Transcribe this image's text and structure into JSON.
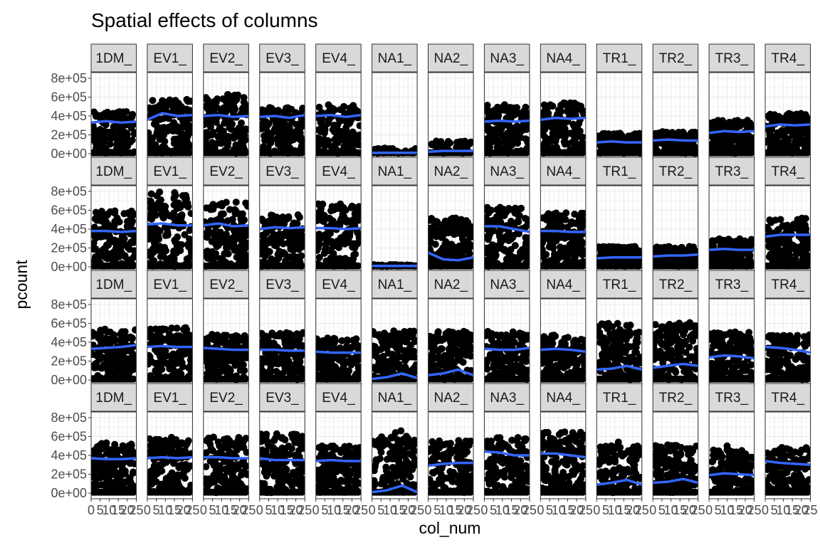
{
  "chart_data": {
    "type": "scatter",
    "title": "Spatial effects of columns",
    "xlabel": "col_num",
    "ylabel": "pcount",
    "facet_labels": [
      "1DM_",
      "EV1_",
      "EV2_",
      "EV3_",
      "EV4_",
      "NA1_",
      "NA2_",
      "NA3_",
      "NA4_",
      "TR1_",
      "TR2_",
      "TR3_",
      "TR4_"
    ],
    "facet_rows": 4,
    "x_ticks": [
      "0",
      "5",
      "10",
      "15",
      "20",
      "25"
    ],
    "x_tick_values": [
      0,
      5,
      10,
      15,
      20,
      25
    ],
    "xlim": [
      0,
      25
    ],
    "y_ticks": [
      "0e+00",
      "2e+05",
      "4e+05",
      "6e+05",
      "8e+05"
    ],
    "y_tick_values": [
      0,
      200000,
      400000,
      600000,
      800000
    ],
    "ylim": [
      -60000,
      860000
    ],
    "grid": true,
    "point_color": "#000000",
    "smooth_color": "#3366FF",
    "panel_background": "#FFFFFF",
    "strip_background": "#D9D9D9",
    "grid_color": "#EBEBEB",
    "panels": [
      [
        {
          "ymax": 480000,
          "trend": [
            330000,
            345000,
            330000,
            340000
          ]
        },
        {
          "ymax": 620000,
          "trend": [
            360000,
            430000,
            400000,
            410000
          ]
        },
        {
          "ymax": 700000,
          "trend": [
            400000,
            410000,
            390000,
            400000
          ]
        },
        {
          "ymax": 540000,
          "trend": [
            390000,
            400000,
            380000,
            410000
          ]
        },
        {
          "ymax": 560000,
          "trend": [
            400000,
            410000,
            390000,
            410000
          ]
        },
        {
          "ymax": 60000,
          "trend": [
            10000,
            10000,
            10000,
            10000
          ]
        },
        {
          "ymax": 140000,
          "trend": [
            20000,
            30000,
            30000,
            30000
          ]
        },
        {
          "ymax": 560000,
          "trend": [
            340000,
            350000,
            340000,
            350000
          ]
        },
        {
          "ymax": 580000,
          "trend": [
            360000,
            380000,
            370000,
            380000
          ]
        },
        {
          "ymax": 230000,
          "trend": [
            120000,
            130000,
            120000,
            120000
          ]
        },
        {
          "ymax": 250000,
          "trend": [
            140000,
            150000,
            140000,
            140000
          ]
        },
        {
          "ymax": 380000,
          "trend": [
            220000,
            240000,
            230000,
            240000
          ]
        },
        {
          "ymax": 460000,
          "trend": [
            290000,
            310000,
            300000,
            310000
          ]
        }
      ],
      [
        {
          "ymax": 640000,
          "trend": [
            380000,
            380000,
            370000,
            380000
          ]
        },
        {
          "ymax": 860000,
          "trend": [
            450000,
            460000,
            440000,
            440000
          ]
        },
        {
          "ymax": 740000,
          "trend": [
            440000,
            460000,
            430000,
            440000
          ]
        },
        {
          "ymax": 600000,
          "trend": [
            400000,
            420000,
            410000,
            420000
          ]
        },
        {
          "ymax": 720000,
          "trend": [
            410000,
            410000,
            400000,
            410000
          ]
        },
        {
          "ymax": 20000,
          "trend": [
            10000,
            10000,
            10000,
            10000
          ]
        },
        {
          "ymax": 560000,
          "trend": [
            150000,
            80000,
            70000,
            100000
          ]
        },
        {
          "ymax": 680000,
          "trend": [
            430000,
            430000,
            400000,
            370000
          ]
        },
        {
          "ymax": 620000,
          "trend": [
            380000,
            380000,
            370000,
            370000
          ]
        },
        {
          "ymax": 230000,
          "trend": [
            90000,
            100000,
            100000,
            100000
          ]
        },
        {
          "ymax": 230000,
          "trend": [
            110000,
            120000,
            120000,
            130000
          ]
        },
        {
          "ymax": 320000,
          "trend": [
            180000,
            190000,
            180000,
            180000
          ]
        },
        {
          "ymax": 560000,
          "trend": [
            320000,
            340000,
            340000,
            340000
          ]
        }
      ],
      [
        {
          "ymax": 580000,
          "trend": [
            330000,
            340000,
            350000,
            370000
          ]
        },
        {
          "ymax": 600000,
          "trend": [
            350000,
            360000,
            350000,
            350000
          ]
        },
        {
          "ymax": 520000,
          "trend": [
            340000,
            330000,
            320000,
            320000
          ]
        },
        {
          "ymax": 540000,
          "trend": [
            320000,
            320000,
            310000,
            310000
          ]
        },
        {
          "ymax": 480000,
          "trend": [
            300000,
            290000,
            290000,
            290000
          ]
        },
        {
          "ymax": 560000,
          "trend": [
            10000,
            30000,
            70000,
            20000
          ]
        },
        {
          "ymax": 560000,
          "trend": [
            50000,
            70000,
            110000,
            50000
          ]
        },
        {
          "ymax": 560000,
          "trend": [
            330000,
            320000,
            320000,
            340000
          ]
        },
        {
          "ymax": 520000,
          "trend": [
            320000,
            330000,
            320000,
            300000
          ]
        },
        {
          "ymax": 650000,
          "trend": [
            110000,
            120000,
            150000,
            110000
          ]
        },
        {
          "ymax": 660000,
          "trend": [
            130000,
            150000,
            170000,
            150000
          ]
        },
        {
          "ymax": 560000,
          "trend": [
            240000,
            260000,
            250000,
            230000
          ]
        },
        {
          "ymax": 520000,
          "trend": [
            350000,
            340000,
            320000,
            290000
          ]
        }
      ],
      [
        {
          "ymax": 580000,
          "trend": [
            370000,
            360000,
            360000,
            370000
          ]
        },
        {
          "ymax": 640000,
          "trend": [
            370000,
            380000,
            370000,
            380000
          ]
        },
        {
          "ymax": 640000,
          "trend": [
            380000,
            380000,
            370000,
            370000
          ]
        },
        {
          "ymax": 680000,
          "trend": [
            370000,
            350000,
            350000,
            350000
          ]
        },
        {
          "ymax": 540000,
          "trend": [
            340000,
            350000,
            340000,
            340000
          ]
        },
        {
          "ymax": 660000,
          "trend": [
            10000,
            30000,
            80000,
            10000
          ]
        },
        {
          "ymax": 600000,
          "trend": [
            290000,
            310000,
            320000,
            320000
          ]
        },
        {
          "ymax": 640000,
          "trend": [
            440000,
            430000,
            400000,
            400000
          ]
        },
        {
          "ymax": 700000,
          "trend": [
            420000,
            420000,
            400000,
            380000
          ]
        },
        {
          "ymax": 540000,
          "trend": [
            90000,
            110000,
            140000,
            90000
          ]
        },
        {
          "ymax": 550000,
          "trend": [
            110000,
            120000,
            150000,
            110000
          ]
        },
        {
          "ymax": 500000,
          "trend": [
            190000,
            210000,
            200000,
            190000
          ]
        },
        {
          "ymax": 520000,
          "trend": [
            340000,
            320000,
            310000,
            300000
          ]
        }
      ]
    ],
    "outliers": [
      [],
      [],
      [],
      [
        {
          "col": 5,
          "x": [
            6,
            12,
            13,
            16
          ],
          "y": [
            500000,
            600000,
            640000,
            660000
          ]
        },
        {
          "col": 9,
          "x": [
            12,
            12,
            12
          ],
          "y": [
            480000,
            500000,
            540000
          ]
        },
        {
          "col": 10,
          "x": [
            12,
            12
          ],
          "y": [
            460000,
            500000
          ]
        },
        {
          "col": 11,
          "x": [
            10,
            10,
            14
          ],
          "y": [
            460000,
            500000,
            380000
          ]
        }
      ]
    ]
  }
}
